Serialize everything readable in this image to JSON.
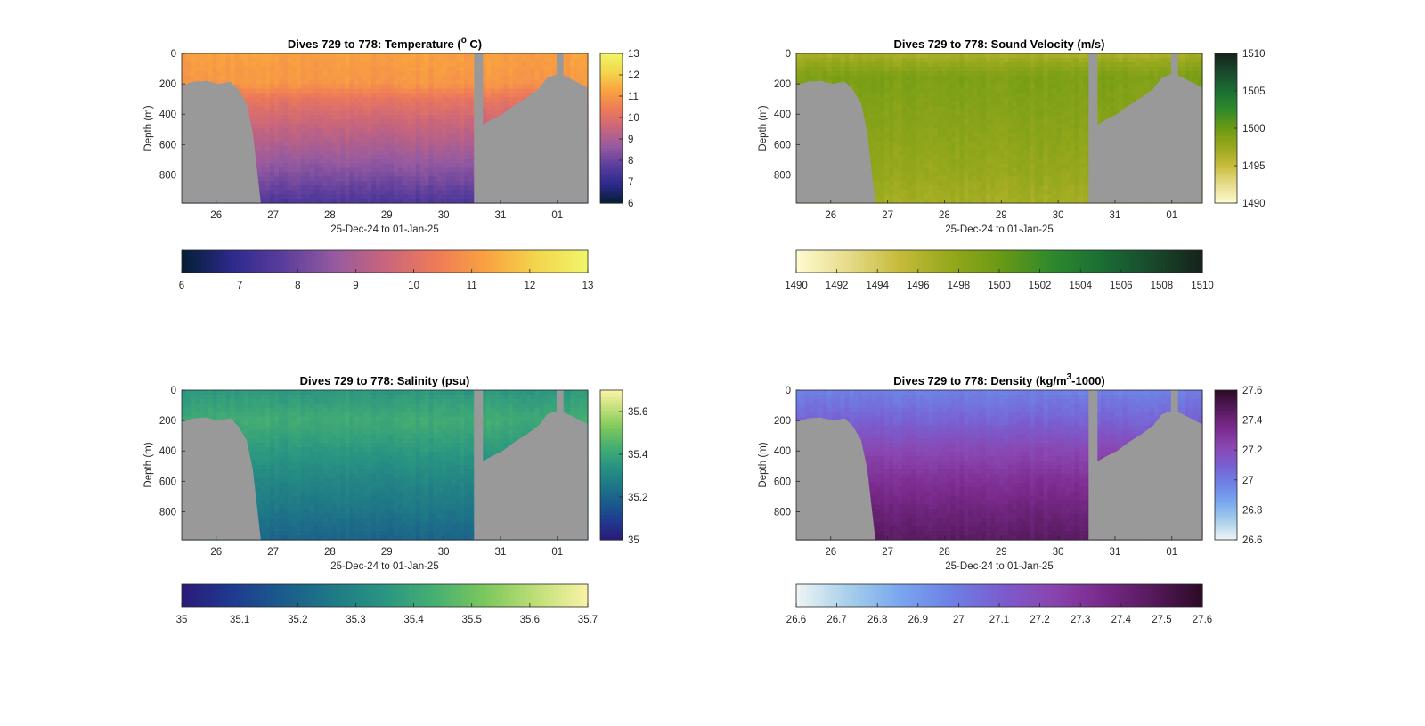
{
  "figure": {
    "background": "#ffffff",
    "no_data_color": "#999999"
  },
  "chart_data": [
    {
      "type": "heatmap",
      "variable": "temperature",
      "title_main": "Dives 729 to 778: Temperature (",
      "title_sup": "o",
      "title_tail": " C)",
      "xlabel": "25-Dec-24 to 01-Jan-25",
      "ylabel": "Depth (m)",
      "x_ticks": [
        "26",
        "27",
        "28",
        "29",
        "30",
        "31",
        "01"
      ],
      "y_ticks": [
        "0",
        "200",
        "400",
        "600",
        "800"
      ],
      "y_tick_values": [
        0,
        200,
        400,
        600,
        800
      ],
      "ylim": [
        0,
        985
      ],
      "colorbar_side": {
        "ticks": [
          "6",
          "7",
          "8",
          "9",
          "10",
          "11",
          "12",
          "13"
        ],
        "range": [
          6,
          13
        ]
      },
      "colorbar_bottom": {
        "ticks": [
          "6",
          "7",
          "8",
          "9",
          "10",
          "11",
          "12",
          "13"
        ],
        "range": [
          6,
          13
        ]
      },
      "colormap": [
        "#041e34",
        "#2d2a8c",
        "#5a3d9c",
        "#955aa0",
        "#c8657c",
        "#ee7a59",
        "#f9a240",
        "#f3d64c",
        "#f0f56a"
      ],
      "profile": [
        {
          "depth": 0,
          "value": 11.2
        },
        {
          "depth": 200,
          "value": 11.0
        },
        {
          "depth": 300,
          "value": 10.2
        },
        {
          "depth": 500,
          "value": 9.4
        },
        {
          "depth": 700,
          "value": 8.7
        },
        {
          "depth": 850,
          "value": 8.1
        },
        {
          "depth": 985,
          "value": 7.5
        }
      ]
    },
    {
      "type": "heatmap",
      "variable": "sound_velocity",
      "title_main": "Dives 729 to 778: Sound Velocity (m/s)",
      "title_sup": "",
      "title_tail": "",
      "xlabel": "25-Dec-24 to 01-Jan-25",
      "ylabel": "Depth (m)",
      "x_ticks": [
        "26",
        "27",
        "28",
        "29",
        "30",
        "31",
        "01"
      ],
      "y_ticks": [
        "0",
        "200",
        "400",
        "600",
        "800"
      ],
      "y_tick_values": [
        0,
        200,
        400,
        600,
        800
      ],
      "ylim": [
        0,
        985
      ],
      "colorbar_side": {
        "ticks": [
          "1490",
          "1495",
          "1500",
          "1505",
          "1510"
        ],
        "range": [
          1490,
          1510
        ]
      },
      "colorbar_bottom": {
        "ticks": [
          "1490",
          "1492",
          "1494",
          "1496",
          "1498",
          "1500",
          "1502",
          "1504",
          "1506",
          "1508",
          "1510"
        ],
        "range": [
          1490,
          1510
        ]
      },
      "colormap": [
        "#fefbd0",
        "#e6dc8c",
        "#c7bc3c",
        "#97a81c",
        "#6b9a14",
        "#2f8a2c",
        "#1a6e34",
        "#194a2c",
        "#15221a"
      ],
      "profile": [
        {
          "depth": 0,
          "value": 1496.5
        },
        {
          "depth": 150,
          "value": 1499.0
        },
        {
          "depth": 400,
          "value": 1498.5
        },
        {
          "depth": 600,
          "value": 1498.0
        },
        {
          "depth": 800,
          "value": 1497.5
        },
        {
          "depth": 985,
          "value": 1496.8
        }
      ]
    },
    {
      "type": "heatmap",
      "variable": "salinity",
      "title_main": "Dives 729 to 778: Salinity (psu)",
      "title_sup": "",
      "title_tail": "",
      "xlabel": "25-Dec-24 to 01-Jan-25",
      "ylabel": "Depth (m)",
      "x_ticks": [
        "26",
        "27",
        "28",
        "29",
        "30",
        "31",
        "01"
      ],
      "y_ticks": [
        "0",
        "200",
        "400",
        "600",
        "800"
      ],
      "y_tick_values": [
        0,
        200,
        400,
        600,
        800
      ],
      "ylim": [
        0,
        985
      ],
      "colorbar_side": {
        "ticks": [
          "35",
          "35.2",
          "35.4",
          "35.6"
        ],
        "range": [
          35.0,
          35.7
        ]
      },
      "colorbar_bottom": {
        "ticks": [
          "35",
          "35.1",
          "35.2",
          "35.3",
          "35.4",
          "35.5",
          "35.6",
          "35.7"
        ],
        "range": [
          35.0,
          35.7
        ]
      },
      "colormap": [
        "#2b1a7a",
        "#1f3a8f",
        "#1a5c8c",
        "#1f7a86",
        "#2a9582",
        "#47b071",
        "#7dc85c",
        "#c0df78",
        "#fbf3a8"
      ],
      "profile": [
        {
          "depth": 0,
          "value": 35.36
        },
        {
          "depth": 200,
          "value": 35.42
        },
        {
          "depth": 400,
          "value": 35.36
        },
        {
          "depth": 600,
          "value": 35.3
        },
        {
          "depth": 800,
          "value": 35.25
        },
        {
          "depth": 985,
          "value": 35.2
        }
      ]
    },
    {
      "type": "heatmap",
      "variable": "density",
      "title_main": "Dives 729 to 778: Density (kg/m",
      "title_sup": "3",
      "title_tail": "-1000)",
      "xlabel": "25-Dec-24 to 01-Jan-25",
      "ylabel": "Depth (m)",
      "x_ticks": [
        "26",
        "27",
        "28",
        "29",
        "30",
        "31",
        "01"
      ],
      "y_ticks": [
        "0",
        "200",
        "400",
        "600",
        "800"
      ],
      "y_tick_values": [
        0,
        200,
        400,
        600,
        800
      ],
      "ylim": [
        0,
        985
      ],
      "colorbar_side": {
        "ticks": [
          "26.6",
          "26.8",
          "27",
          "27.2",
          "27.4",
          "27.6"
        ],
        "range": [
          26.6,
          27.6
        ]
      },
      "colorbar_bottom": {
        "ticks": [
          "26.6",
          "26.7",
          "26.8",
          "26.9",
          "27",
          "27.1",
          "27.2",
          "27.3",
          "27.4",
          "27.5",
          "27.6"
        ],
        "range": [
          26.6,
          27.6
        ]
      },
      "colormap": [
        "#eef5f5",
        "#a9d0ea",
        "#7aa8ee",
        "#6e82e6",
        "#7a5ed0",
        "#8a46b0",
        "#7a2a8c",
        "#561a5c",
        "#2c0a26"
      ],
      "profile": [
        {
          "depth": 0,
          "value": 26.98
        },
        {
          "depth": 200,
          "value": 27.08
        },
        {
          "depth": 400,
          "value": 27.22
        },
        {
          "depth": 600,
          "value": 27.32
        },
        {
          "depth": 800,
          "value": 27.4
        },
        {
          "depth": 985,
          "value": 27.46
        }
      ]
    }
  ],
  "section_mask": {
    "x_domain": [
      0,
      100
    ],
    "bottom_depth_left": [
      {
        "x": 0,
        "depth": 210
      },
      {
        "x": 3,
        "depth": 185
      },
      {
        "x": 6,
        "depth": 180
      },
      {
        "x": 9,
        "depth": 200
      },
      {
        "x": 12,
        "depth": 185
      },
      {
        "x": 14,
        "depth": 240
      },
      {
        "x": 16,
        "depth": 330
      },
      {
        "x": 17.5,
        "depth": 520
      },
      {
        "x": 19.5,
        "depth": 985
      }
    ],
    "data_end_x": 72,
    "bottom_depth_right": [
      {
        "x": 72,
        "depth": 985
      },
      {
        "x": 73.5,
        "depth": 480
      },
      {
        "x": 76,
        "depth": 440
      },
      {
        "x": 79,
        "depth": 400
      },
      {
        "x": 82,
        "depth": 340
      },
      {
        "x": 85,
        "depth": 290
      },
      {
        "x": 88,
        "depth": 230
      },
      {
        "x": 90,
        "depth": 160
      },
      {
        "x": 93,
        "depth": 130
      },
      {
        "x": 96,
        "depth": 170
      },
      {
        "x": 100,
        "depth": 225
      }
    ],
    "gap_bars": [
      {
        "x0": 72,
        "x1": 74.2,
        "depth": 0
      },
      {
        "x0": 92.3,
        "x1": 94,
        "depth": 0,
        "max_depth": 160
      }
    ]
  }
}
